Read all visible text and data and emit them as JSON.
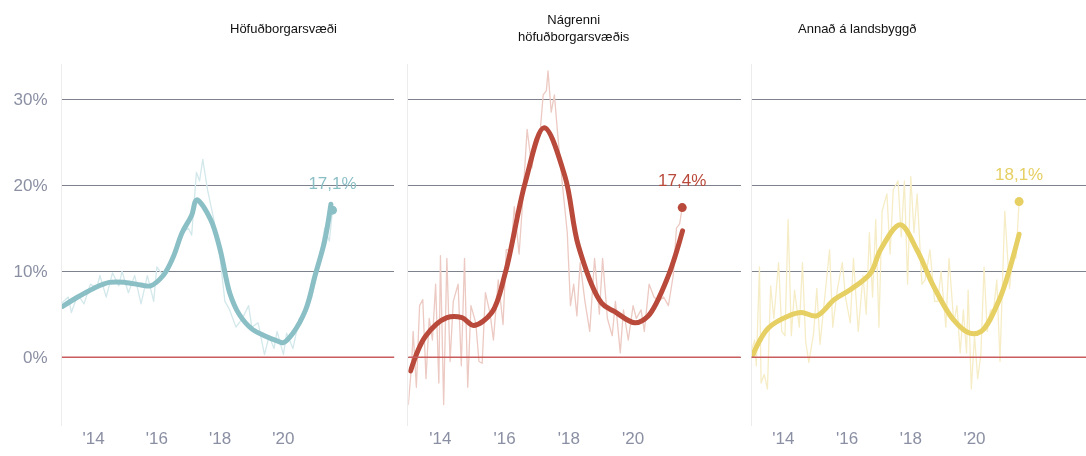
{
  "chart_data": [
    {
      "type": "line",
      "title": "Höfuðborgarsvæði",
      "xlim": [
        2013.0,
        2023.5
      ],
      "xticks": [
        {
          "value": 2014,
          "label": "'14"
        },
        {
          "value": 2016,
          "label": "'16"
        },
        {
          "value": 2018,
          "label": "'18"
        },
        {
          "value": 2020,
          "label": "'20"
        }
      ],
      "ylim": [
        -8,
        34.1
      ],
      "yticks": [
        {
          "value": 0,
          "label": "0%"
        },
        {
          "value": 10,
          "label": "10%"
        },
        {
          "value": 20,
          "label": "20%"
        },
        {
          "value": 30,
          "label": "30%"
        }
      ],
      "grid": "y",
      "ref_lines": [
        {
          "axis": "y",
          "value": 0,
          "color": "#c95c5c"
        }
      ],
      "annotations": [
        {
          "text": "17,1%",
          "x": 2021.55,
          "y": 17.1
        }
      ],
      "series": [
        {
          "color": "#d3e8eb",
          "x": [
            2013.0,
            2013.2,
            2013.3,
            2013.5,
            2013.7,
            2013.9,
            2014.1,
            2014.2,
            2014.4,
            2014.6,
            2014.8,
            2014.9,
            2015.1,
            2015.3,
            2015.5,
            2015.7,
            2015.9,
            2016.0,
            2016.2,
            2016.4,
            2016.6,
            2016.8,
            2017.0,
            2017.1,
            2017.25,
            2017.35,
            2017.45,
            2017.6,
            2017.8,
            2018.0,
            2018.15,
            2018.3,
            2018.5,
            2018.7,
            2018.9,
            2019.0,
            2019.2,
            2019.4,
            2019.55,
            2019.7,
            2019.8,
            2020.0,
            2020.1,
            2020.3,
            2020.5,
            2020.7,
            2020.9,
            2021.1,
            2021.3,
            2021.45,
            2021.55
          ],
          "values": [
            6.3,
            7.0,
            5.2,
            7.3,
            6.2,
            8.5,
            8.0,
            9.5,
            7.0,
            9.8,
            8.3,
            10.0,
            7.5,
            9.5,
            6.2,
            9.5,
            6.5,
            10.5,
            9.5,
            11.0,
            12.0,
            14.5,
            15.0,
            14.2,
            21.5,
            20.5,
            23.0,
            19.5,
            16.0,
            11.5,
            6.5,
            5.5,
            3.5,
            4.5,
            6.0,
            3.5,
            4.0,
            0.3,
            2.5,
            1.0,
            3.0,
            0.3,
            2.8,
            1.0,
            4.5,
            5.0,
            7.0,
            10.5,
            15.0,
            13.5,
            17.1
          ]
        },
        {
          "color": "#8bbfc6",
          "x": [
            2013.02,
            2013.5,
            2014.0,
            2014.5,
            2015.0,
            2015.5,
            2015.8,
            2016.2,
            2016.5,
            2016.8,
            2017.1,
            2017.26,
            2017.7,
            2018.0,
            2018.3,
            2018.6,
            2019.0,
            2019.4,
            2019.8,
            2020.0,
            2020.3,
            2020.7,
            2021.0,
            2021.3,
            2021.5
          ],
          "values": [
            5.9,
            7.0,
            8.0,
            8.7,
            8.7,
            8.4,
            8.3,
            9.5,
            11.5,
            14.5,
            16.5,
            18.3,
            16.0,
            12.5,
            7.5,
            5.0,
            3.3,
            2.5,
            1.9,
            1.7,
            2.8,
            5.5,
            9.5,
            13.5,
            17.8
          ]
        },
        {
          "type": "scatter",
          "marker": "circle",
          "color": "#8bbfc6",
          "x": [
            2021.55
          ],
          "values": [
            17.1
          ]
        }
      ]
    },
    {
      "type": "line",
      "title": "Nágrenni\nhöfuðborgarsvæðis",
      "xlim": [
        2013.0,
        2023.35
      ],
      "xticks": [
        {
          "value": 2014,
          "label": "'14"
        },
        {
          "value": 2016,
          "label": "'16"
        },
        {
          "value": 2018,
          "label": "'18"
        },
        {
          "value": 2020,
          "label": "'20"
        }
      ],
      "ylim": [
        -8,
        34.1
      ],
      "yticks": [
        {
          "value": 0,
          "label": null
        },
        {
          "value": 10,
          "label": null
        },
        {
          "value": 20,
          "label": null
        },
        {
          "value": 30,
          "label": null
        }
      ],
      "grid": "y",
      "tick_labels": "x",
      "ref_lines": [
        {
          "axis": "y",
          "value": 0,
          "color": "#c95c5c"
        }
      ],
      "annotations": [
        {
          "text": "17,4%",
          "x": 2021.53,
          "y": 17.4
        }
      ],
      "series": [
        {
          "color": "#ecc9c2",
          "x": [
            2013.0,
            2013.1,
            2013.15,
            2013.25,
            2013.35,
            2013.45,
            2013.55,
            2013.65,
            2013.75,
            2013.85,
            2013.95,
            2014.0,
            2014.1,
            2014.2,
            2014.3,
            2014.4,
            2014.55,
            2014.65,
            2014.75,
            2014.85,
            2014.95,
            2015.1,
            2015.2,
            2015.3,
            2015.4,
            2015.55,
            2015.65,
            2015.8,
            2015.95,
            2016.05,
            2016.2,
            2016.3,
            2016.45,
            2016.55,
            2016.7,
            2016.85,
            2016.95,
            2017.1,
            2017.2,
            2017.3,
            2017.35,
            2017.45,
            2017.55,
            2017.65,
            2017.8,
            2017.95,
            2018.05,
            2018.15,
            2018.25,
            2018.35,
            2018.5,
            2018.65,
            2018.8,
            2018.95,
            2019.05,
            2019.2,
            2019.35,
            2019.45,
            2019.6,
            2019.7,
            2019.85,
            2020.0,
            2020.1,
            2020.25,
            2020.35,
            2020.5,
            2020.65,
            2020.8,
            2020.95,
            2021.1,
            2021.25,
            2021.35,
            2021.45,
            2021.53
          ],
          "values": [
            -5.5,
            -1.0,
            3.0,
            -3.5,
            6.0,
            6.7,
            -2.5,
            4.5,
            2.0,
            8.5,
            -3.0,
            11.8,
            -5.5,
            11.5,
            -0.5,
            6.5,
            8.5,
            -1.0,
            11.5,
            -3.5,
            6.0,
            4.0,
            -0.5,
            -0.7,
            7.5,
            5.0,
            2.0,
            9.0,
            3.8,
            12.5,
            12.5,
            17.5,
            12.0,
            17.5,
            26.5,
            22.0,
            25.0,
            26.0,
            30.5,
            31.0,
            33.3,
            28.5,
            30.5,
            26.0,
            20.0,
            14.5,
            6.0,
            8.5,
            4.8,
            11.0,
            6.5,
            3.0,
            11.5,
            5.0,
            11.5,
            4.5,
            2.5,
            6.5,
            0.5,
            5.5,
            2.0,
            6.0,
            4.5,
            5.5,
            3.0,
            8.5,
            7.0,
            6.5,
            7.0,
            6.0,
            9.5,
            15.0,
            15.5,
            17.4
          ]
        },
        {
          "color": "#b94a3b",
          "x": [
            2013.07,
            2013.53,
            2014.2,
            2014.67,
            2015.03,
            2015.6,
            2016.02,
            2016.64,
            2017.23,
            2017.88,
            2018.3,
            2019.02,
            2019.43,
            2020.06,
            2020.47,
            2021.09,
            2021.54
          ],
          "values": [
            -1.6,
            2.4,
            4.6,
            4.6,
            3.7,
            5.2,
            9.8,
            20.3,
            26.7,
            21.0,
            12.9,
            6.3,
            5.3,
            4.0,
            4.8,
            9.4,
            14.7
          ]
        },
        {
          "type": "scatter",
          "marker": "circle",
          "color": "#b94a3b",
          "x": [
            2021.53
          ],
          "values": [
            17.4
          ]
        }
      ]
    },
    {
      "type": "line",
      "title": "Annað á landsbyggð",
      "xlim": [
        2013.0,
        2023.5
      ],
      "xticks": [
        {
          "value": 2014,
          "label": "'14"
        },
        {
          "value": 2016,
          "label": "'16"
        },
        {
          "value": 2018,
          "label": "'18"
        },
        {
          "value": 2020,
          "label": "'20"
        }
      ],
      "ylim": [
        -8,
        34.1
      ],
      "yticks": [
        {
          "value": 0,
          "label": null
        },
        {
          "value": 10,
          "label": null
        },
        {
          "value": 20,
          "label": null
        },
        {
          "value": 30,
          "label": null
        }
      ],
      "grid": "y",
      "tick_labels": "x",
      "ref_lines": [
        {
          "axis": "y",
          "value": 0,
          "color": "#c95c5c"
        }
      ],
      "annotations": [
        {
          "text": "18,1%",
          "x": 2021.4,
          "y": 18.1
        }
      ],
      "series": [
        {
          "color": "#f6edc6",
          "x": [
            2013.0,
            2013.1,
            2013.15,
            2013.25,
            2013.3,
            2013.4,
            2013.5,
            2013.6,
            2013.7,
            2013.85,
            2013.95,
            2014.05,
            2014.15,
            2014.25,
            2014.35,
            2014.5,
            2014.6,
            2014.7,
            2014.8,
            2014.95,
            2015.05,
            2015.15,
            2015.3,
            2015.45,
            2015.55,
            2015.7,
            2015.85,
            2015.95,
            2016.1,
            2016.2,
            2016.35,
            2016.5,
            2016.6,
            2016.7,
            2016.8,
            2016.9,
            2017.0,
            2017.1,
            2017.25,
            2017.35,
            2017.45,
            2017.6,
            2017.7,
            2017.8,
            2017.9,
            2018.0,
            2018.1,
            2018.2,
            2018.35,
            2018.45,
            2018.6,
            2018.75,
            2018.85,
            2018.95,
            2019.1,
            2019.2,
            2019.35,
            2019.45,
            2019.55,
            2019.65,
            2019.75,
            2019.8,
            2019.9,
            2020.0,
            2020.1,
            2020.2,
            2020.3,
            2020.4,
            2020.5,
            2020.6,
            2020.7,
            2020.8,
            2020.95,
            2021.1,
            2021.2,
            2021.3,
            2021.4
          ],
          "values": [
            0.8,
            2.0,
            -1.0,
            10.5,
            -3.0,
            -2.0,
            -3.7,
            8.3,
            4.5,
            11.0,
            3.0,
            2.5,
            16.0,
            2.5,
            7.8,
            3.5,
            11.0,
            1.8,
            -0.6,
            2.8,
            8.0,
            1.5,
            7.0,
            12.5,
            3.5,
            8.0,
            11.0,
            7.0,
            4.0,
            11.5,
            3.0,
            9.5,
            5.0,
            14.5,
            7.0,
            16.0,
            3.5,
            17.0,
            19.0,
            12.0,
            19.5,
            20.5,
            14.0,
            20.5,
            8.5,
            21.0,
            14.5,
            19.0,
            8.5,
            9.0,
            12.5,
            6.5,
            6.5,
            10.0,
            3.5,
            11.5,
            4.0,
            6.0,
            0.5,
            5.5,
            0.5,
            7.8,
            -3.7,
            2.5,
            -2.5,
            0.3,
            10.5,
            3.0,
            5.5,
            5.5,
            9.0,
            -0.5,
            17.0,
            8.0,
            12.0,
            11.5,
            18.1
          ]
        },
        {
          "color": "#e6cf63",
          "x": [
            2013.04,
            2013.53,
            2014.16,
            2014.57,
            2015.04,
            2015.6,
            2016.12,
            2016.74,
            2017.05,
            2017.67,
            2018.19,
            2018.71,
            2019.33,
            2019.85,
            2020.21,
            2020.78,
            2021.4
          ],
          "values": [
            0.3,
            3.4,
            4.8,
            5.2,
            4.8,
            6.7,
            7.9,
            9.8,
            12.5,
            15.4,
            12.5,
            8.3,
            4.4,
            2.8,
            3.0,
            6.7,
            14.3
          ]
        },
        {
          "type": "scatter",
          "marker": "circle",
          "color": "#e6cf63",
          "x": [
            2021.4
          ],
          "values": [
            18.1
          ]
        }
      ]
    }
  ]
}
